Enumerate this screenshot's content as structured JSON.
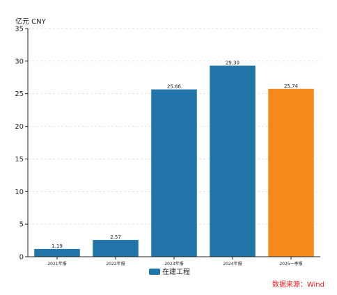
{
  "chart_data": {
    "type": "bar",
    "unit_label": "亿元  CNY",
    "categories": [
      "2021年报",
      "2022年报",
      "2023年报",
      "2024年报",
      "2025一季报"
    ],
    "series": [
      {
        "name": "在建工程",
        "values": [
          1.19,
          2.57,
          25.66,
          29.3,
          25.74
        ]
      }
    ],
    "data_labels": [
      "1.19",
      "2.57",
      "25.66",
      "29.30",
      "25.74"
    ],
    "y_ticks": [
      "0",
      "5",
      "10",
      "15",
      "20",
      "25",
      "30",
      "35"
    ],
    "ylim": [
      0,
      35
    ],
    "grid": true,
    "legend_position": "bottom-center",
    "colors": {
      "bar": "#2275a8",
      "highlight_bar": "#f5891c",
      "source": "#e02020",
      "axis": "#222222",
      "grid": "#d9d9d9"
    },
    "highlight_index": 4
  },
  "source": "数据来源：Wind"
}
